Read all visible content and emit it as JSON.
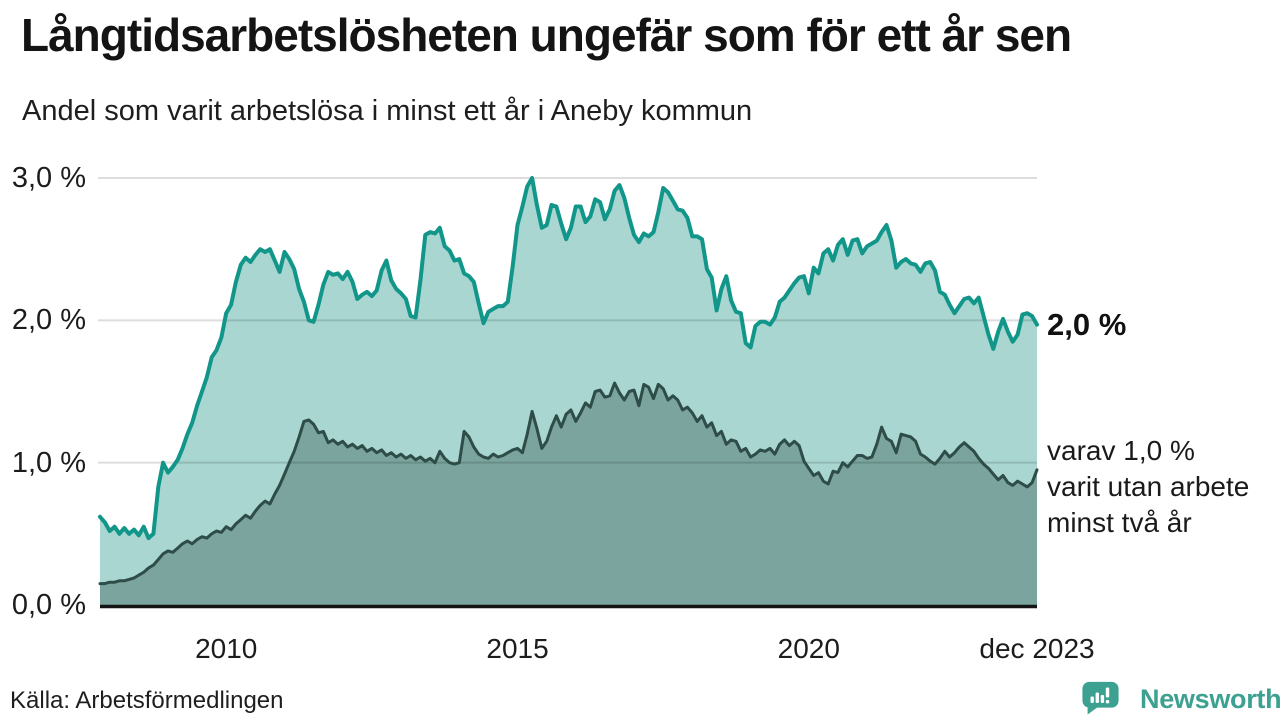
{
  "title": "Långtidsarbetslösheten ungefär som för ett år sen",
  "subtitle": "Andel som varit arbetslösa i minst ett år i Aneby kommun",
  "source": "Källa: Arbetsförmedlingen",
  "brand": {
    "name": "Newsworthy",
    "color": "#3da192"
  },
  "annotations": {
    "total_label": "2,0 %",
    "subset_label": "varav 1,0 %\nvarit utan arbete\nminst två år"
  },
  "colors": {
    "line_total": "#12968a",
    "area_total": "#a9d6d0",
    "line_subset": "#2e4c48",
    "area_subset": "#7aa49d",
    "gridline": "rgba(0,0,0,0.135)",
    "axis": "#141414",
    "text": "#1a1a1a"
  },
  "chart_data": {
    "type": "area",
    "title": "Andel som varit arbetslösa i minst ett år i Aneby kommun",
    "unit": "%",
    "x_start": "2007-11",
    "x_end": "2023-12",
    "x_interval": "monthly",
    "x_tick_labels": [
      "2010",
      "2015",
      "2020",
      "dec 2023"
    ],
    "x_tick_months": [
      26,
      86,
      146,
      193
    ],
    "y_tick_labels": [
      "0,0 %",
      "1,0 %",
      "2,0 %",
      "3,0 %"
    ],
    "y_tick_values": [
      0,
      1,
      2,
      3
    ],
    "ylim": [
      0,
      3.0
    ],
    "grid": "horizontal",
    "legend_position": "right-annotations",
    "series": [
      {
        "name": "Arbetslösa minst ett år",
        "last_value_label": "2,0 %",
        "values": [
          0.62,
          0.58,
          0.52,
          0.55,
          0.5,
          0.54,
          0.5,
          0.53,
          0.49,
          0.55,
          0.47,
          0.5,
          0.83,
          1.0,
          0.93,
          0.97,
          1.02,
          1.1,
          1.2,
          1.28,
          1.4,
          1.5,
          1.6,
          1.74,
          1.79,
          1.88,
          2.05,
          2.11,
          2.27,
          2.39,
          2.44,
          2.41,
          2.46,
          2.5,
          2.48,
          2.5,
          2.42,
          2.34,
          2.48,
          2.43,
          2.36,
          2.22,
          2.13,
          2.0,
          1.99,
          2.11,
          2.25,
          2.34,
          2.32,
          2.33,
          2.29,
          2.34,
          2.27,
          2.15,
          2.18,
          2.2,
          2.17,
          2.21,
          2.35,
          2.42,
          2.28,
          2.22,
          2.19,
          2.15,
          2.03,
          2.02,
          2.28,
          2.6,
          2.62,
          2.61,
          2.65,
          2.52,
          2.49,
          2.42,
          2.43,
          2.33,
          2.31,
          2.27,
          2.12,
          1.98,
          2.06,
          2.08,
          2.1,
          2.1,
          2.13,
          2.38,
          2.67,
          2.8,
          2.94,
          3.0,
          2.81,
          2.65,
          2.67,
          2.81,
          2.8,
          2.68,
          2.57,
          2.65,
          2.8,
          2.8,
          2.69,
          2.73,
          2.85,
          2.83,
          2.71,
          2.78,
          2.91,
          2.95,
          2.86,
          2.72,
          2.6,
          2.55,
          2.61,
          2.59,
          2.62,
          2.76,
          2.93,
          2.9,
          2.84,
          2.78,
          2.77,
          2.72,
          2.59,
          2.59,
          2.57,
          2.36,
          2.3,
          2.07,
          2.22,
          2.31,
          2.14,
          2.06,
          2.05,
          1.84,
          1.81,
          1.96,
          1.99,
          1.99,
          1.97,
          2.02,
          2.13,
          2.16,
          2.21,
          2.26,
          2.3,
          2.31,
          2.19,
          2.37,
          2.33,
          2.47,
          2.5,
          2.42,
          2.53,
          2.57,
          2.46,
          2.56,
          2.57,
          2.47,
          2.52,
          2.54,
          2.56,
          2.62,
          2.67,
          2.56,
          2.37,
          2.41,
          2.43,
          2.4,
          2.39,
          2.34,
          2.4,
          2.41,
          2.35,
          2.2,
          2.18,
          2.11,
          2.05,
          2.1,
          2.15,
          2.16,
          2.12,
          2.16,
          2.03,
          1.9,
          1.8,
          1.92,
          2.01,
          1.92,
          1.85,
          1.9,
          2.04,
          2.05,
          2.03,
          1.97
        ]
      },
      {
        "name": "varav utan arbete minst två år",
        "last_value_label": "varav 1,0 %",
        "values": [
          0.15,
          0.15,
          0.16,
          0.16,
          0.17,
          0.17,
          0.18,
          0.19,
          0.21,
          0.23,
          0.26,
          0.28,
          0.32,
          0.36,
          0.38,
          0.37,
          0.4,
          0.43,
          0.45,
          0.43,
          0.46,
          0.48,
          0.47,
          0.5,
          0.52,
          0.51,
          0.55,
          0.53,
          0.57,
          0.6,
          0.63,
          0.61,
          0.66,
          0.7,
          0.73,
          0.71,
          0.78,
          0.84,
          0.92,
          1.0,
          1.08,
          1.18,
          1.29,
          1.3,
          1.27,
          1.21,
          1.22,
          1.14,
          1.16,
          1.13,
          1.15,
          1.11,
          1.13,
          1.1,
          1.12,
          1.08,
          1.1,
          1.07,
          1.09,
          1.05,
          1.07,
          1.04,
          1.06,
          1.03,
          1.05,
          1.02,
          1.04,
          1.01,
          1.03,
          1.0,
          1.08,
          1.03,
          1.0,
          0.99,
          1.0,
          1.22,
          1.18,
          1.11,
          1.06,
          1.04,
          1.03,
          1.06,
          1.04,
          1.05,
          1.07,
          1.09,
          1.1,
          1.07,
          1.2,
          1.36,
          1.24,
          1.1,
          1.15,
          1.25,
          1.33,
          1.25,
          1.34,
          1.37,
          1.29,
          1.35,
          1.42,
          1.39,
          1.5,
          1.51,
          1.46,
          1.47,
          1.56,
          1.49,
          1.44,
          1.5,
          1.51,
          1.4,
          1.55,
          1.53,
          1.45,
          1.55,
          1.52,
          1.44,
          1.47,
          1.44,
          1.37,
          1.39,
          1.35,
          1.29,
          1.33,
          1.25,
          1.28,
          1.19,
          1.22,
          1.13,
          1.16,
          1.15,
          1.08,
          1.1,
          1.04,
          1.06,
          1.09,
          1.08,
          1.1,
          1.06,
          1.13,
          1.16,
          1.12,
          1.15,
          1.12,
          1.01,
          0.96,
          0.91,
          0.93,
          0.87,
          0.85,
          0.94,
          0.93,
          1.0,
          0.97,
          1.01,
          1.05,
          1.05,
          1.03,
          1.04,
          1.13,
          1.25,
          1.17,
          1.15,
          1.07,
          1.2,
          1.19,
          1.18,
          1.15,
          1.06,
          1.04,
          1.01,
          0.99,
          1.03,
          1.08,
          1.04,
          1.07,
          1.11,
          1.14,
          1.11,
          1.08,
          1.03,
          0.99,
          0.96,
          0.92,
          0.88,
          0.91,
          0.86,
          0.84,
          0.87,
          0.85,
          0.83,
          0.86,
          0.95
        ]
      }
    ]
  }
}
